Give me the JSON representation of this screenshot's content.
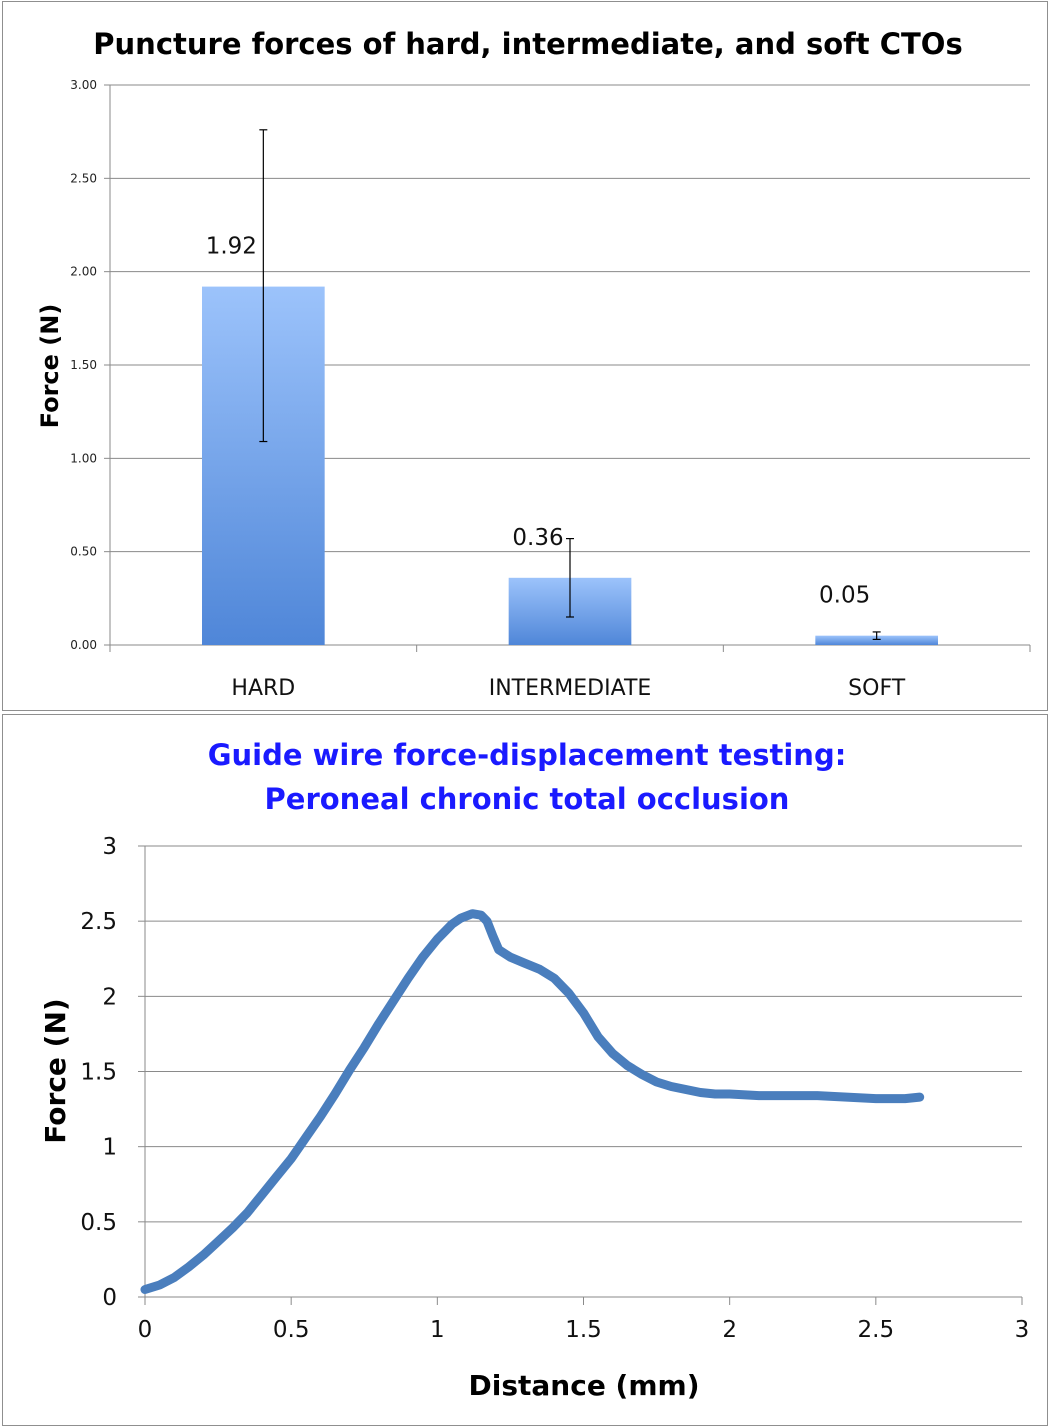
{
  "chart_data": [
    {
      "type": "bar",
      "title": "Puncture forces of hard, intermediate, and soft CTOs",
      "xlabel": "",
      "ylabel": "Force (N)",
      "categories": [
        "HARD",
        "INTERMEDIATE",
        "SOFT"
      ],
      "values": [
        1.92,
        0.36,
        0.05
      ],
      "data_labels": [
        "1.92",
        "0.36",
        "0.05"
      ],
      "error_bars": [
        {
          "low": 1.09,
          "high": 2.76
        },
        {
          "low": 0.15,
          "high": 0.57
        },
        {
          "low": 0.03,
          "high": 0.07
        }
      ],
      "ylim": [
        0,
        3
      ],
      "yticks": [
        "0.00",
        "0.50",
        "1.00",
        "1.50",
        "2.00",
        "2.50",
        "3.00"
      ],
      "grid": true,
      "bar_color": "#4f86d8"
    },
    {
      "type": "line",
      "title": [
        "Guide wire force-displacement testing:",
        "Peroneal chronic total occlusion"
      ],
      "xlabel": "Distance (mm)",
      "ylabel": "Force (N)",
      "xlim": [
        0,
        3
      ],
      "ylim": [
        0,
        3
      ],
      "xticks": [
        "0",
        "0.5",
        "1",
        "1.5",
        "2",
        "2.5",
        "3"
      ],
      "yticks": [
        "0",
        "0.5",
        "1",
        "1.5",
        "2",
        "2.5",
        "3"
      ],
      "grid": true,
      "line_color": "#4a7ebd",
      "series": [
        {
          "x": [
            0.0,
            0.05,
            0.1,
            0.15,
            0.2,
            0.25,
            0.3,
            0.35,
            0.4,
            0.45,
            0.5,
            0.55,
            0.6,
            0.65,
            0.7,
            0.75,
            0.8,
            0.85,
            0.9,
            0.95,
            1.0,
            1.05,
            1.08,
            1.12,
            1.15,
            1.17,
            1.19,
            1.21,
            1.25,
            1.3,
            1.35,
            1.4,
            1.45,
            1.5,
            1.55,
            1.6,
            1.65,
            1.7,
            1.75,
            1.8,
            1.85,
            1.9,
            1.95,
            2.0,
            2.1,
            2.2,
            2.3,
            2.4,
            2.5,
            2.6,
            2.65
          ],
          "y": [
            0.05,
            0.08,
            0.13,
            0.2,
            0.28,
            0.37,
            0.46,
            0.56,
            0.68,
            0.8,
            0.92,
            1.06,
            1.2,
            1.35,
            1.51,
            1.66,
            1.82,
            1.97,
            2.12,
            2.26,
            2.38,
            2.48,
            2.52,
            2.55,
            2.54,
            2.5,
            2.4,
            2.31,
            2.26,
            2.22,
            2.18,
            2.12,
            2.02,
            1.89,
            1.73,
            1.62,
            1.54,
            1.48,
            1.43,
            1.4,
            1.38,
            1.36,
            1.35,
            1.35,
            1.34,
            1.34,
            1.34,
            1.33,
            1.32,
            1.32,
            1.33
          ]
        }
      ]
    }
  ]
}
